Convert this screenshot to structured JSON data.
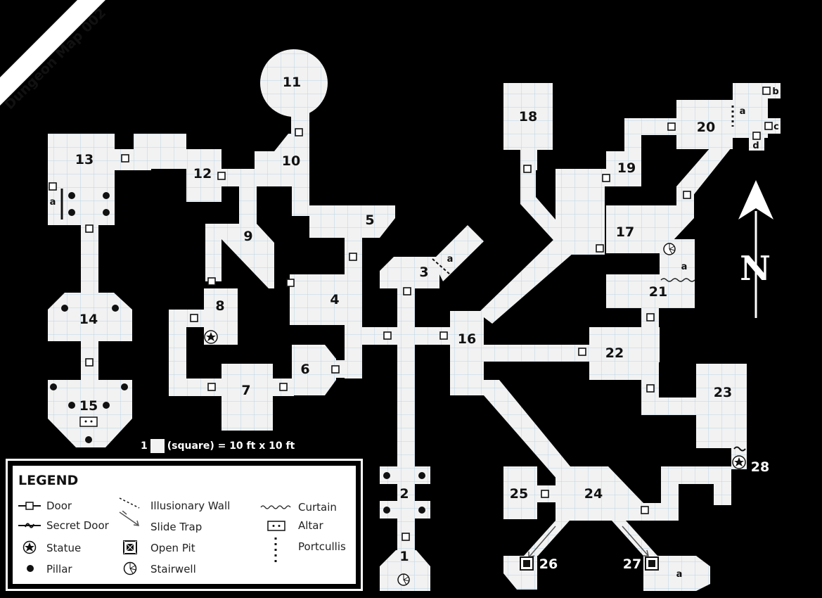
{
  "title": "Dungeon Map 002",
  "scale": {
    "number": "1",
    "text": "(square) = 10 ft x 10 ft"
  },
  "rooms": [
    {
      "id": "r1",
      "label": "1"
    },
    {
      "id": "r2",
      "label": "2"
    },
    {
      "id": "r3",
      "label": "3"
    },
    {
      "id": "r4",
      "label": "4"
    },
    {
      "id": "r5",
      "label": "5"
    },
    {
      "id": "r6",
      "label": "6"
    },
    {
      "id": "r7",
      "label": "7"
    },
    {
      "id": "r8",
      "label": "8"
    },
    {
      "id": "r9",
      "label": "9"
    },
    {
      "id": "r10",
      "label": "10"
    },
    {
      "id": "r11",
      "label": "11"
    },
    {
      "id": "r12",
      "label": "12"
    },
    {
      "id": "r13",
      "label": "13"
    },
    {
      "id": "r14",
      "label": "14"
    },
    {
      "id": "r15",
      "label": "15"
    },
    {
      "id": "r16",
      "label": "16"
    },
    {
      "id": "r17",
      "label": "17"
    },
    {
      "id": "r18",
      "label": "18"
    },
    {
      "id": "r19",
      "label": "19"
    },
    {
      "id": "r20",
      "label": "20"
    },
    {
      "id": "r21",
      "label": "21"
    },
    {
      "id": "r22",
      "label": "22"
    },
    {
      "id": "r23",
      "label": "23"
    },
    {
      "id": "r24",
      "label": "24"
    },
    {
      "id": "r25",
      "label": "25"
    },
    {
      "id": "r26",
      "label": "26"
    },
    {
      "id": "r27",
      "label": "27"
    },
    {
      "id": "r28",
      "label": "28"
    }
  ],
  "sublabels": {
    "a": "a",
    "b": "b",
    "c": "c",
    "d": "d"
  },
  "compass": {
    "north": "N"
  },
  "legend": {
    "title": "LEGEND",
    "items": {
      "door": "Door",
      "secret_door": "Secret Door",
      "statue": "Statue",
      "pillar": "Pillar",
      "illusionary_wall": "Illusionary Wall",
      "slide_trap": "Slide Trap",
      "open_pit": "Open Pit",
      "stairwell": "Stairwell",
      "curtain": "Curtain",
      "altar": "Altar",
      "portcullis": "Portcullis"
    }
  }
}
